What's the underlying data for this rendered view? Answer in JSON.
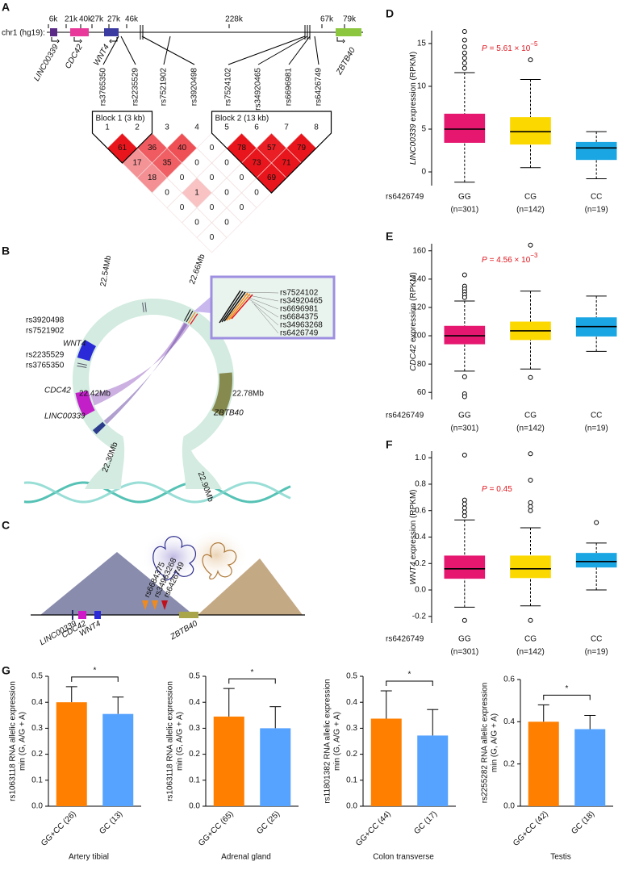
{
  "panel_a": {
    "label": "A",
    "chromosome": "chr1 (hg19):",
    "distances": [
      "6k",
      "21k",
      "40k",
      "27k",
      "27k",
      "46k",
      "228k",
      "67k",
      "79k"
    ],
    "genes": [
      {
        "name": "LINC00339",
        "color": "#5b2a86"
      },
      {
        "name": "CDC42",
        "color": "#e8399a"
      },
      {
        "name": "WNT4",
        "color": "#3a3aa0"
      },
      {
        "name": "ZBTB40",
        "color": "#8cc63f"
      }
    ],
    "snps": [
      {
        "name": "rs3765350",
        "color": "#111111"
      },
      {
        "name": "rs2235529",
        "color": "#111111"
      },
      {
        "name": "rs7521902",
        "color": "#111111"
      },
      {
        "name": "rs3920498",
        "color": "#111111"
      },
      {
        "name": "rs7524102",
        "color": "#e0141c"
      },
      {
        "name": "rs34920465",
        "color": "#e0141c"
      },
      {
        "name": "rs6696981",
        "color": "#e0141c"
      },
      {
        "name": "rs6426749",
        "color": "#e0141c"
      }
    ],
    "snp_numbers": [
      "1",
      "2",
      "3",
      "4",
      "5",
      "6",
      "7",
      "8"
    ],
    "blocks": [
      {
        "label": "Block 1 (3 kb)",
        "color": "#111111"
      },
      {
        "label": "Block 2 (13 kb)",
        "color": "#e0141c"
      }
    ],
    "ld": [
      [
        61,
        36,
        40,
        0,
        78,
        57,
        79
      ],
      [
        17,
        35,
        0,
        0,
        73,
        71
      ],
      [
        18,
        0,
        0,
        0,
        69
      ],
      [
        0,
        1,
        0,
        0
      ],
      [
        0,
        0,
        0
      ],
      [
        0,
        0
      ],
      [
        0
      ]
    ]
  },
  "panel_b": {
    "label": "B",
    "snps_upper": [
      "rs3920498",
      "rs7521902"
    ],
    "snps_lower": [
      "rs2235529",
      "rs3765350"
    ],
    "genes": [
      {
        "name": "WNT4",
        "color": "#2a2ad8"
      },
      {
        "name": "CDC42",
        "color": "#c21fc8"
      },
      {
        "name": "LINC00339",
        "color": "#2c3c8c"
      },
      {
        "name": "ZBTB40",
        "color": "#6d6a1e"
      }
    ],
    "inset_snps": [
      {
        "name": "rs7524102",
        "color": "#111111"
      },
      {
        "name": "rs34920465",
        "color": "#111111"
      },
      {
        "name": "rs6696981",
        "color": "#111111"
      },
      {
        "name": "rs6684375",
        "color": "#f08a1c"
      },
      {
        "name": "rs34963268",
        "color": "#f08a1c"
      },
      {
        "name": "rs6426749",
        "color": "#e0141c"
      }
    ],
    "coordinates": [
      "22.54Mb",
      "22.66Mb",
      "22.42Mb",
      "22.78Mb",
      "22.30Mb",
      "22.90Mb"
    ]
  },
  "panel_c": {
    "label": "C",
    "genes": [
      {
        "name": "LINC00339",
        "color": "#2c2c6c"
      },
      {
        "name": "CDC42",
        "color": "#d018c8"
      },
      {
        "name": "WNT4",
        "color": "#2a2ad8"
      },
      {
        "name": "ZBTB40",
        "color": "#6d6a1e"
      }
    ],
    "snps": [
      {
        "name": "rs6684375",
        "color": "#f08a1c"
      },
      {
        "name": "rs34963268",
        "color": "#f08a1c"
      },
      {
        "name": "rs6426749",
        "color": "#c0101c"
      }
    ]
  },
  "chart_data": [
    {
      "type": "box",
      "panel": "D",
      "y_label_gene": "LINC00339",
      "y_label": "expression (RPKM)",
      "p_label": "P",
      "p_value": "= 5.61 × 10",
      "p_exponent": "−5",
      "p_color": "#e0141c",
      "group_label": "rs6426749",
      "categories": [
        "GG",
        "CG",
        "CC"
      ],
      "category_counts": [
        "(n=301)",
        "(n=142)",
        "(n=19)"
      ],
      "colors": [
        "#e5176f",
        "#fbd800",
        "#1aa6e3"
      ],
      "ylim": [
        -1.6,
        16.5
      ],
      "yticks": [
        0,
        5,
        10,
        15
      ],
      "boxes": [
        {
          "whisker_low": -1.2,
          "q1": 3.4,
          "median": 5.0,
          "q3": 6.8,
          "whisker_high": 11.6,
          "outliers": [
            16.4,
            15.4,
            14.6,
            13.9,
            13.3,
            12.7,
            12.1
          ]
        },
        {
          "whisker_low": 0.5,
          "q1": 3.2,
          "median": 4.7,
          "q3": 6.4,
          "whisker_high": 10.8,
          "outliers": [
            13.1
          ]
        },
        {
          "whisker_low": -0.8,
          "q1": 1.4,
          "median": 2.8,
          "q3": 3.5,
          "whisker_high": 4.7,
          "outliers": []
        }
      ]
    },
    {
      "type": "box",
      "panel": "E",
      "y_label_gene": "CDC42",
      "y_label": "expression (RPKM)",
      "p_label": "P",
      "p_value": "= 4.56 × 10",
      "p_exponent": "−3",
      "p_color": "#e0141c",
      "group_label": "rs6426749",
      "categories": [
        "GG",
        "CG",
        "CC"
      ],
      "category_counts": [
        "(n=301)",
        "(n=142)",
        "(n=19)"
      ],
      "colors": [
        "#e5176f",
        "#fbd800",
        "#1aa6e3"
      ],
      "ylim": [
        55,
        165
      ],
      "yticks": [
        60,
        80,
        100,
        120,
        140,
        160
      ],
      "boxes": [
        {
          "whisker_low": 75,
          "q1": 94,
          "median": 100,
          "q3": 107,
          "whisker_high": 124.5,
          "outliers": [
            143,
            135,
            133,
            131,
            129,
            127,
            71,
            59,
            57
          ]
        },
        {
          "whisker_low": 76.5,
          "q1": 97,
          "median": 103.5,
          "q3": 110,
          "whisker_high": 131.5,
          "outliers": [
            164,
            70.5
          ]
        },
        {
          "whisker_low": 89,
          "q1": 99.5,
          "median": 106.5,
          "q3": 113,
          "whisker_high": 128,
          "outliers": []
        }
      ]
    },
    {
      "type": "box",
      "panel": "F",
      "y_label_gene": "WNT4",
      "y_label": "expression (RPKM)",
      "p_label": "P",
      "p_value": "= 0.45",
      "p_color": "#e0141c",
      "group_label": "rs6426749",
      "categories": [
        "GG",
        "CG",
        "CC"
      ],
      "category_counts": [
        "(n=301)",
        "(n=142)",
        "(n=19)"
      ],
      "colors": [
        "#e5176f",
        "#fbd800",
        "#1aa6e3"
      ],
      "ylim": [
        -0.25,
        1.05
      ],
      "yticks": [
        -0.2,
        {
          "value": 0,
          "label": "0.0"
        },
        0.2,
        0.4,
        0.6,
        0.8,
        {
          "value": 1,
          "label": "1.0"
        }
      ],
      "boxes": [
        {
          "whisker_low": -0.13,
          "q1": 0.085,
          "median": 0.16,
          "q3": 0.26,
          "whisker_high": 0.53,
          "outliers": [
            1.02,
            0.68,
            0.65,
            0.62,
            0.59,
            0.56,
            -0.23
          ]
        },
        {
          "whisker_low": -0.12,
          "q1": 0.09,
          "median": 0.16,
          "q3": 0.26,
          "whisker_high": 0.47,
          "outliers": [
            1.03,
            0.83,
            0.66,
            0.63,
            0.6,
            -0.23
          ]
        },
        {
          "whisker_low": 0.0,
          "q1": 0.17,
          "median": 0.215,
          "q3": 0.28,
          "whisker_high": 0.355,
          "outliers": [
            0.51
          ]
        }
      ]
    },
    {
      "type": "bar",
      "panel": "G",
      "y_label": [
        "rs1063118 RNA allelic expression",
        "min (G, A/G + A)"
      ],
      "categories": [
        "GG+CC (26)",
        "GC (13)"
      ],
      "values": [
        0.4,
        0.355
      ],
      "errors": [
        0.06,
        0.065
      ],
      "colors": [
        "#ff7f00",
        "#55a2ff"
      ],
      "ylim": [
        0,
        0.5
      ],
      "yticks": [
        {
          "value": 0,
          "label": "0.0"
        },
        0.1,
        0.2,
        0.3,
        0.4,
        0.5
      ],
      "significance": "*",
      "title": "Artery tibial",
      "title_color": "#e0141c"
    },
    {
      "type": "bar",
      "y_label": [
        "rs1063118 RNA allelic expression",
        "min (G, A/G + A)"
      ],
      "categories": [
        "GG+CC (65)",
        "GC (25)"
      ],
      "values": [
        0.345,
        0.3
      ],
      "errors": [
        0.108,
        0.083
      ],
      "colors": [
        "#ff7f00",
        "#55a2ff"
      ],
      "ylim": [
        0,
        0.5
      ],
      "yticks": [
        {
          "value": 0,
          "label": "0.0"
        },
        0.1,
        0.2,
        0.3,
        0.4,
        0.5
      ],
      "significance": "*",
      "title": "Adrenal gland",
      "title_color": "#e0141c"
    },
    {
      "type": "bar",
      "y_label": [
        "rs11801382 RNA allelic expression",
        "min (G, A/G + A)"
      ],
      "categories": [
        "GG+CC (44)",
        "GC (17)"
      ],
      "values": [
        0.337,
        0.272
      ],
      "errors": [
        0.107,
        0.1
      ],
      "colors": [
        "#ff7f00",
        "#55a2ff"
      ],
      "ylim": [
        0,
        0.5
      ],
      "yticks": [
        {
          "value": 0,
          "label": "0.0"
        },
        0.1,
        0.2,
        0.3,
        0.4,
        0.5
      ],
      "significance": "*",
      "title": "Colon transverse",
      "title_color": "#e0141c"
    },
    {
      "type": "bar",
      "y_label": [
        "rs2255282 RNA allelic expression",
        "min (G, A/G + A)"
      ],
      "categories": [
        "GG+CC (42)",
        "GC (18)"
      ],
      "values": [
        0.4,
        0.365
      ],
      "errors": [
        0.08,
        0.065
      ],
      "colors": [
        "#ff7f00",
        "#55a2ff"
      ],
      "ylim": [
        0,
        0.6
      ],
      "yticks": [
        {
          "value": 0,
          "label": "0.0"
        },
        0.2,
        0.4,
        0.6
      ],
      "significance": "*",
      "title": "Testis",
      "title_color": "#e0141c"
    }
  ]
}
